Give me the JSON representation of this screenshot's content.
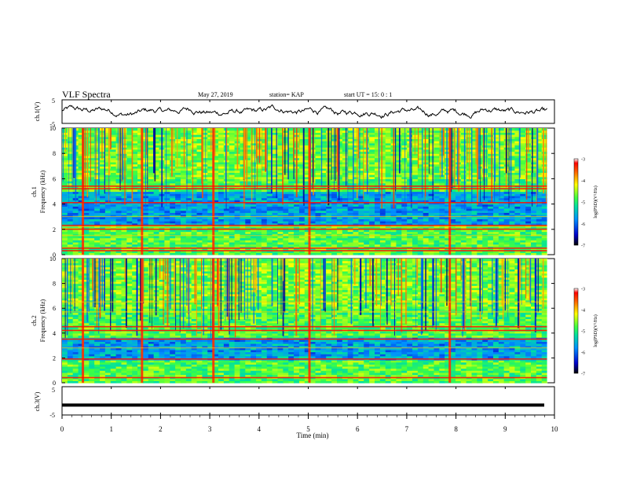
{
  "header": {
    "title": "VLF Spectra",
    "date": "May 27, 2019",
    "station": "station= KAP",
    "start": "start  UT =   15: 0   : 1"
  },
  "chart_data": [
    {
      "type": "line",
      "ylabel": "ch.1(V)",
      "ylim": [
        -5,
        5
      ],
      "yticks": [
        "5",
        "-5"
      ],
      "xlim": [
        0,
        10
      ],
      "color": "#000000"
    },
    {
      "type": "heatmap",
      "ylabel_line1": "ch.1",
      "ylabel_line2": "Frequency  (kHz)",
      "ylim": [
        0,
        10
      ],
      "yticks": [
        "0",
        "2",
        "4",
        "6",
        "8",
        "10"
      ],
      "xlim": [
        0,
        9.85
      ],
      "strong_bands_khz": [
        5.4,
        5.2,
        4.1,
        2.3,
        2.0,
        0.5,
        0.3
      ],
      "weak_bands_khz": [
        2.2,
        3.0,
        1.5
      ],
      "colorbar": {
        "label": "log(PSD)(V²/Hz)",
        "ticks": [
          "-3",
          "-4",
          "-5",
          "-6",
          "-7"
        ],
        "range": [
          -7,
          -3
        ]
      }
    },
    {
      "type": "heatmap",
      "ylabel_line1": "ch.2",
      "ylabel_line2": "Frequency  (kHz)",
      "ylim": [
        0,
        10
      ],
      "yticks": [
        "0",
        "2",
        "4",
        "6",
        "8",
        "10"
      ],
      "xlim": [
        0,
        9.85
      ],
      "strong_bands_khz": [
        4.5,
        4.2,
        3.5,
        1.9,
        0.4
      ],
      "weak_bands_khz": [
        6.5,
        5.7,
        2.8
      ],
      "colorbar": {
        "label": "log(PSD)(V²/Hz)",
        "ticks": [
          "-3",
          "-4",
          "-5",
          "-6",
          "-7"
        ],
        "range": [
          -7,
          -3
        ]
      }
    },
    {
      "type": "line",
      "ylabel": "ch.3(V)",
      "ylim": [
        -5,
        5
      ],
      "yticks": [
        "5",
        "-5"
      ],
      "xlim": [
        0,
        10
      ],
      "values_constant": -1.5,
      "xlabel": "Time  (min)",
      "xticks": [
        "0",
        "1",
        "2",
        "3",
        "4",
        "5",
        "6",
        "7",
        "8",
        "9",
        "10"
      ]
    }
  ]
}
